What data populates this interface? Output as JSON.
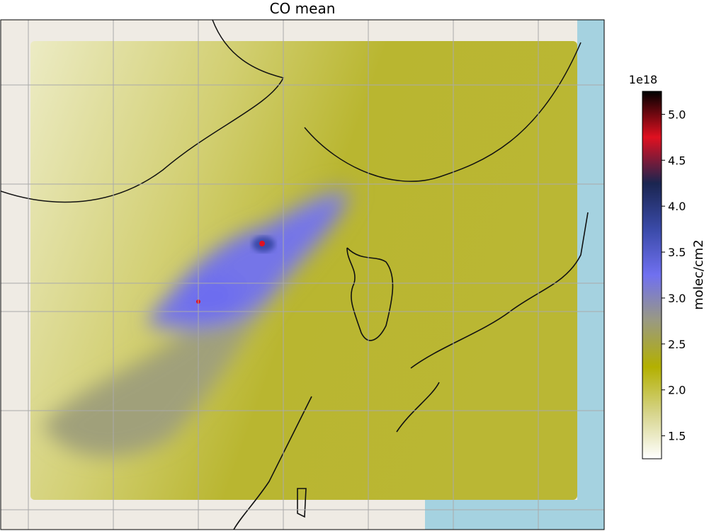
{
  "title": "CO mean",
  "colorbar": {
    "label": "molec/cm2",
    "offset_label": "1e18",
    "lim": [
      1.25,
      5.25
    ],
    "ticks": [
      1.5,
      {
        "value": 2,
        "label": "2.0"
      },
      2.5,
      {
        "value": 3,
        "label": "3.0"
      },
      3.5,
      {
        "value": 4,
        "label": "4.0"
      },
      4.5,
      {
        "value": 5,
        "label": "5.0"
      }
    ],
    "colormap": [
      "#ffffff",
      "#d6d48a",
      "#b3b000",
      "#9a9a80",
      "#7070f0",
      "#3a4aa8",
      "#1a2550",
      "#e01020",
      "#000000"
    ]
  }
}
